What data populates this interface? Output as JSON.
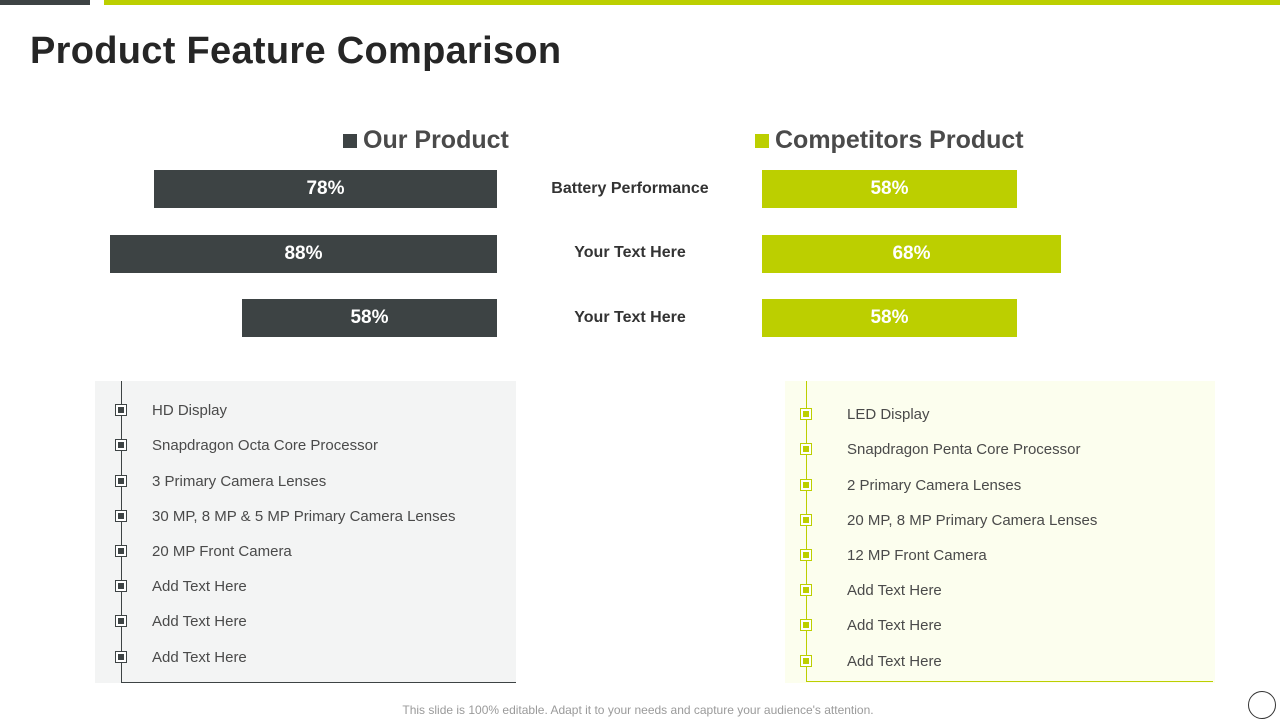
{
  "slide": {
    "title": "Product Feature Comparison",
    "footer": "This slide is 100% editable. Adapt it to your needs and capture your audience's attention."
  },
  "colors": {
    "our_product": "#3d4344",
    "competitor": "#bccf00"
  },
  "legend": {
    "our_product": "Our Product",
    "competitor_product": "Competitors Product"
  },
  "metrics": [
    {
      "label": "Battery Performance",
      "ours": "78%",
      "competitor": "58%",
      "ours_value": 78,
      "competitor_value": 58
    },
    {
      "label": "Your Text Here",
      "ours": "88%",
      "competitor": "68%",
      "ours_value": 88,
      "competitor_value": 68
    },
    {
      "label": "Your Text Here",
      "ours": "58%",
      "competitor": "58%",
      "ours_value": 58,
      "competitor_value": 58
    }
  ],
  "our_features": [
    "HD Display",
    "Snapdragon Octa Core Processor",
    "3 Primary Camera Lenses",
    "30 MP, 8 MP & 5 MP Primary Camera Lenses",
    "20 MP Front Camera",
    "Add Text Here",
    "Add Text Here",
    "Add Text Here"
  ],
  "competitor_features": [
    "LED Display",
    "Snapdragon Penta Core Processor",
    "2 Primary Camera Lenses",
    "20 MP, 8 MP Primary Camera Lenses",
    "12 MP Front Camera",
    "Add Text Here",
    "Add Text Here",
    "Add Text Here"
  ]
}
